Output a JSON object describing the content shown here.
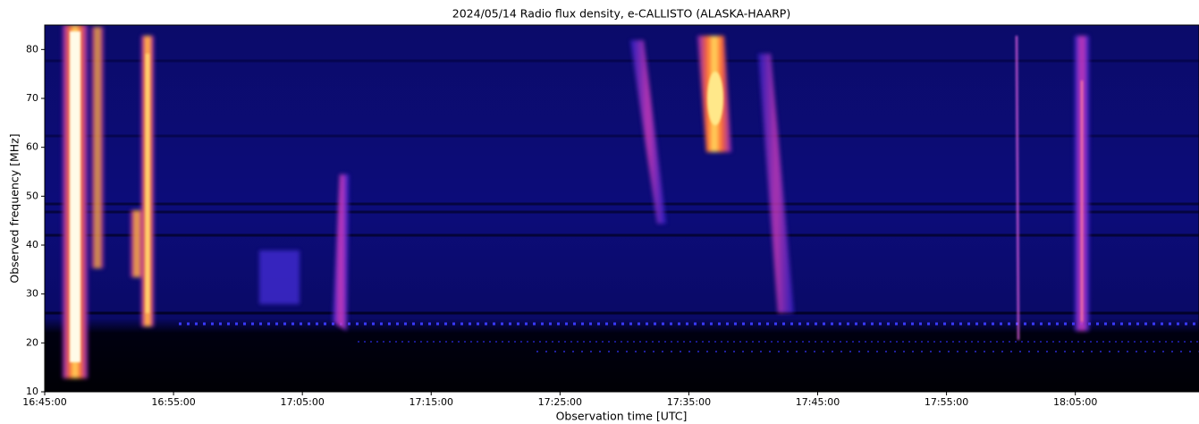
{
  "chart_data": {
    "type": "heatmap",
    "title": "2024/05/14  Radio flux density, e-CALLISTO (ALASKA-HAARP)",
    "xlabel": "Observation time [UTC]",
    "ylabel": "Observed frequency [MHz]",
    "xlim": [
      1005,
      1094.6
    ],
    "xticks": [
      {
        "value": 1005,
        "label": "16:45:00"
      },
      {
        "value": 1015,
        "label": "16:55:00"
      },
      {
        "value": 1025,
        "label": "17:05:00"
      },
      {
        "value": 1035,
        "label": "17:15:00"
      },
      {
        "value": 1045,
        "label": "17:25:00"
      },
      {
        "value": 1055,
        "label": "17:35:00"
      },
      {
        "value": 1065,
        "label": "17:45:00"
      },
      {
        "value": 1075,
        "label": "17:55:00"
      },
      {
        "value": 1085,
        "label": "18:05:00"
      }
    ],
    "ylim": [
      10,
      85
    ],
    "yticks": [
      10,
      20,
      30,
      40,
      50,
      60,
      70,
      80
    ]
  }
}
